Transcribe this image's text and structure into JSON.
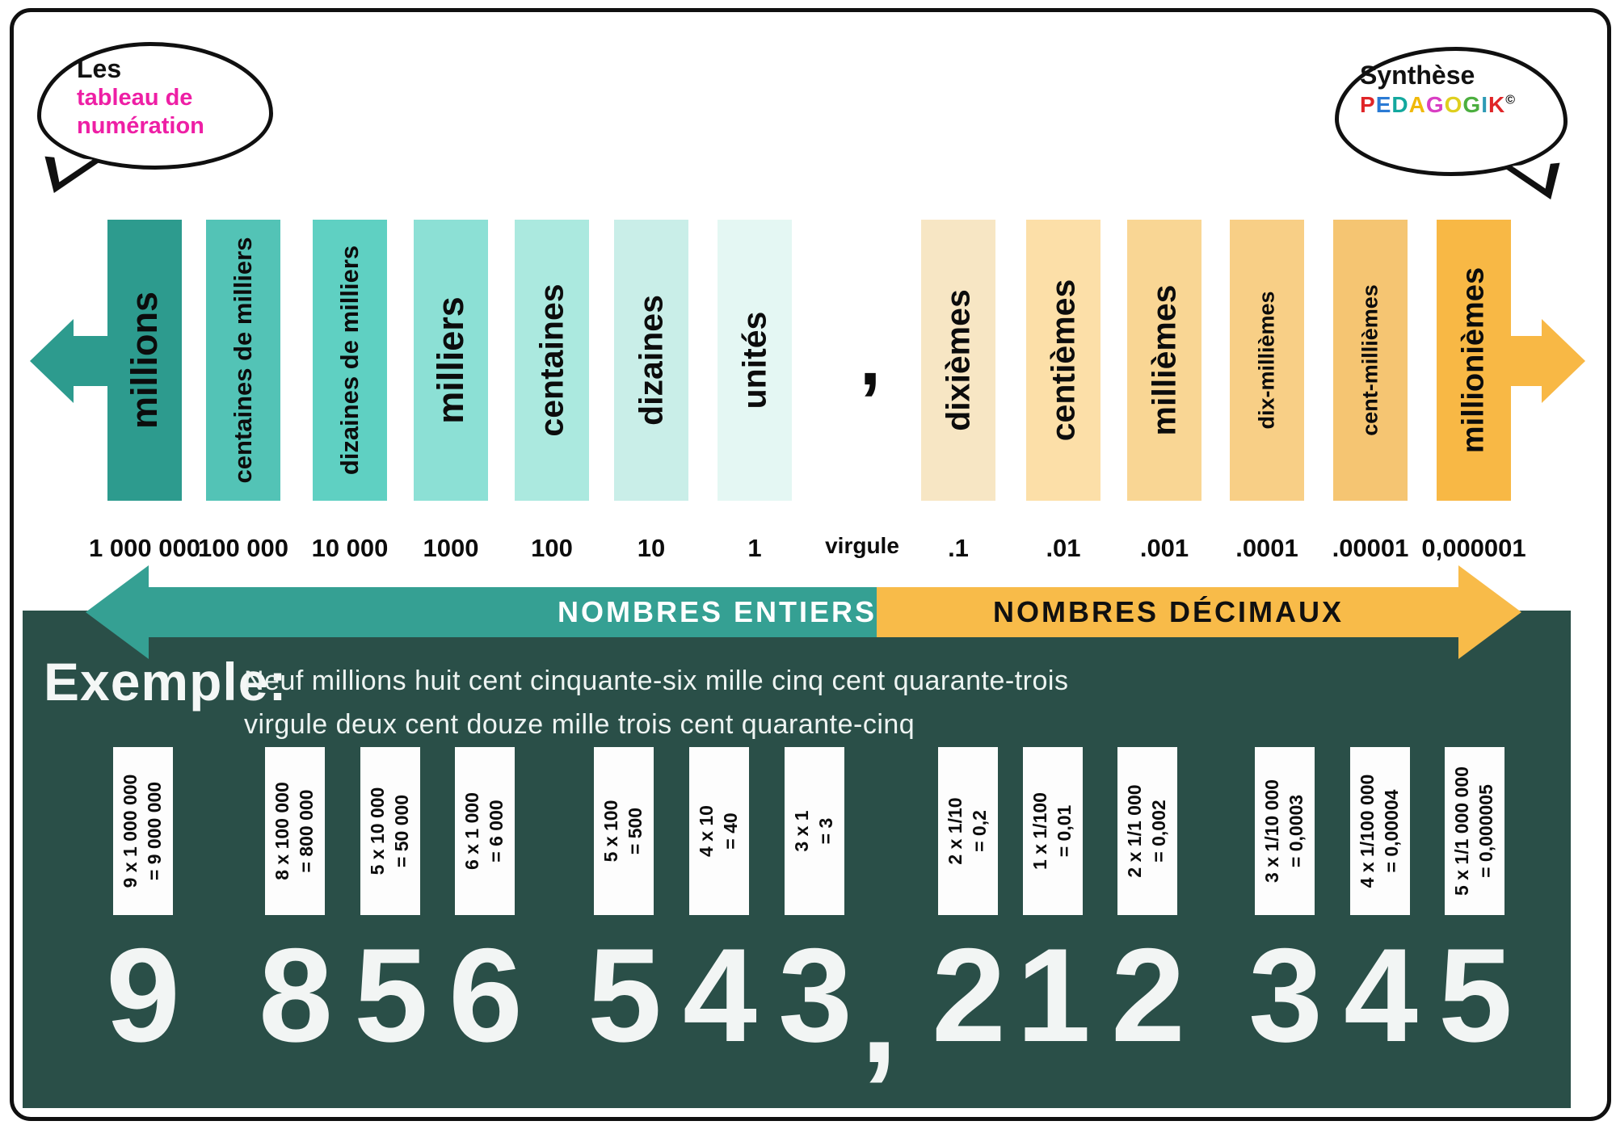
{
  "title_bubble": {
    "prefix": "Les",
    "title_line1": "tableau de",
    "title_line2": "numération",
    "accent_color": "#ee1fa5"
  },
  "brand_bubble": {
    "title": "Synthèse",
    "letters": [
      {
        "ch": "P",
        "color": "#e02528"
      },
      {
        "ch": "E",
        "color": "#2a7ad4"
      },
      {
        "ch": "D",
        "color": "#13a89e"
      },
      {
        "ch": "A",
        "color": "#f0b90a"
      },
      {
        "ch": "G",
        "color": "#d93ec3"
      },
      {
        "ch": "O",
        "color": "#dfcf1e"
      },
      {
        "ch": "G",
        "color": "#4caf3f"
      },
      {
        "ch": "I",
        "color": "#2e9bb5"
      },
      {
        "ch": "K",
        "color": "#e02528"
      }
    ],
    "copyright": "©"
  },
  "columns": [
    {
      "label": "millions",
      "value": "1 000 000",
      "color": "#2d9b8e"
    },
    {
      "label": "centaines de milliers",
      "value": "100 000",
      "color": "#53c3b6"
    },
    {
      "label": "dizaines de milliers",
      "value": "10 000",
      "color": "#5fd0c2"
    },
    {
      "label": "milliers",
      "value": "1000",
      "color": "#8ce0d5"
    },
    {
      "label": "centaines",
      "value": "100",
      "color": "#abe9df"
    },
    {
      "label": "dizaines",
      "value": "10",
      "color": "#c9eee8"
    },
    {
      "label": "unités",
      "value": "1",
      "color": "#e4f7f3"
    },
    {
      "label": "dixièmes",
      "value": ".1",
      "color": "#f7e6c4"
    },
    {
      "label": "centièmes",
      "value": ".01",
      "color": "#fcdfa8"
    },
    {
      "label": "millièmes",
      "value": ".001",
      "color": "#f9d694"
    },
    {
      "label": "dix-millièmes",
      "value": ".0001",
      "color": "#f8cf86"
    },
    {
      "label": "cent-millièmes",
      "value": ".00001",
      "color": "#f5c572"
    },
    {
      "label": "millionièmes",
      "value": "0,000001",
      "color": "#f8b845"
    }
  ],
  "separator": {
    "comma": ",",
    "label": "virgule"
  },
  "bands": {
    "entiers": {
      "label": "NOMBRES ENTIERS",
      "color": "#35a093"
    },
    "decimaux": {
      "label": "NOMBRES DÉCIMAUX",
      "color": "#f8bb49"
    }
  },
  "example": {
    "heading": "Exemple:",
    "line1": "Neuf millions huit cent cinquante-six mille cinq cent quarante-trois",
    "line2": "virgule deux cent douze mille trois cent quarante-cinq"
  },
  "breakdown": [
    {
      "expr": "9 x 1 000 000",
      "result": "= 9 000 000",
      "digit": "9"
    },
    {
      "expr": "8 x 100 000",
      "result": "= 800 000",
      "digit": "8"
    },
    {
      "expr": "5 x 10 000",
      "result": "= 50 000",
      "digit": "5"
    },
    {
      "expr": "6 x 1 000",
      "result": "= 6 000",
      "digit": "6"
    },
    {
      "expr": "5 x 100",
      "result": "= 500",
      "digit": "5"
    },
    {
      "expr": "4 x 10",
      "result": "= 40",
      "digit": "4"
    },
    {
      "expr": "3 x 1",
      "result": "= 3",
      "digit": "3"
    },
    {
      "expr": "2 x 1/10",
      "result": "= 0,2",
      "digit": "2"
    },
    {
      "expr": "1 x 1/100",
      "result": "= 0,01",
      "digit": "1"
    },
    {
      "expr": "2 x 1/1 000",
      "result": "= 0,002",
      "digit": "2"
    },
    {
      "expr": "3 x 1/10 000",
      "result": "= 0,0003",
      "digit": "3"
    },
    {
      "expr": "4 x 1/100 000",
      "result": "= 0,00004",
      "digit": "4"
    },
    {
      "expr": "5 x 1/1 000 000",
      "result": "= 0,000005",
      "digit": "5"
    }
  ],
  "panel_color": "#2a4f48"
}
